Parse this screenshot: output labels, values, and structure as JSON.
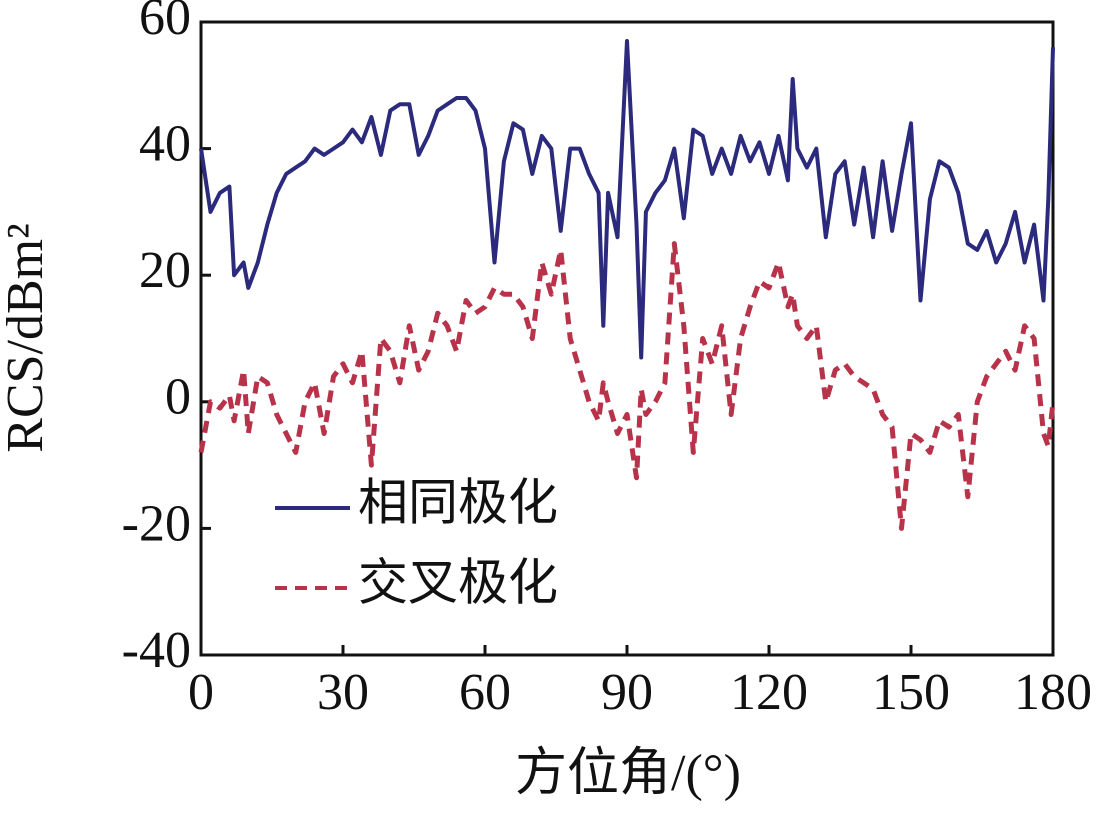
{
  "chart_data": {
    "type": "line",
    "xlabel": "方位角/(°)",
    "ylabel": "RCS/dBm²",
    "x": [
      0,
      2,
      4,
      6,
      7,
      9,
      10,
      12,
      14,
      16,
      18,
      20,
      22,
      24,
      26,
      28,
      30,
      32,
      34,
      36,
      38,
      40,
      42,
      44,
      46,
      48,
      50,
      52,
      54,
      56,
      58,
      60,
      62,
      64,
      66,
      68,
      70,
      72,
      74,
      76,
      78,
      80,
      82,
      84,
      85,
      86,
      88,
      90,
      92,
      93,
      94,
      96,
      98,
      100,
      102,
      104,
      106,
      108,
      110,
      112,
      114,
      116,
      118,
      120,
      122,
      124,
      125,
      126,
      128,
      130,
      132,
      134,
      136,
      138,
      140,
      142,
      144,
      146,
      148,
      150,
      152,
      154,
      156,
      158,
      160,
      162,
      164,
      166,
      168,
      170,
      172,
      174,
      176,
      178,
      179,
      180
    ],
    "series": [
      {
        "name": "相同极化",
        "color": "#2b2a7c",
        "dash": false,
        "values": [
          40,
          30,
          33,
          34,
          20,
          22,
          18,
          22,
          28,
          33,
          36,
          37,
          38,
          40,
          39,
          40,
          41,
          43,
          41,
          45,
          39,
          46,
          47,
          47,
          39,
          42,
          46,
          47,
          48,
          48,
          46,
          40,
          22,
          38,
          44,
          43,
          36,
          42,
          40,
          27,
          40,
          40,
          36,
          33,
          12,
          33,
          26,
          57,
          28,
          7,
          30,
          33,
          35,
          40,
          29,
          43,
          42,
          36,
          40,
          36,
          42,
          38,
          41,
          36,
          42,
          35,
          51,
          40,
          37,
          40,
          26,
          36,
          38,
          28,
          37,
          26,
          38,
          27,
          36,
          44,
          16,
          32,
          38,
          37,
          33,
          25,
          24,
          27,
          22,
          25,
          30,
          22,
          28,
          16,
          32,
          56
        ]
      },
      {
        "name": "交叉极化",
        "color": "#b8334a",
        "dash": true,
        "values": [
          -8,
          0,
          -1,
          1,
          -3,
          5,
          -5,
          4,
          3,
          -2,
          -5,
          -8,
          0,
          3,
          -5,
          4,
          6,
          3,
          8,
          -10,
          10,
          8,
          3,
          12,
          5,
          8,
          14,
          12,
          8,
          16,
          14,
          15,
          18,
          17,
          17,
          15,
          10,
          22,
          17,
          24,
          10,
          5,
          0,
          -3,
          3,
          0,
          -5,
          -2,
          -12,
          2,
          -2,
          0,
          3,
          25,
          12,
          -8,
          10,
          6,
          12,
          -2,
          10,
          15,
          19,
          18,
          22,
          15,
          17,
          12,
          10,
          12,
          0,
          5,
          6,
          4,
          3,
          2,
          -2,
          -4,
          -20,
          -5,
          -6,
          -8,
          -3,
          -4,
          -2,
          -15,
          0,
          4,
          6,
          8,
          5,
          12,
          10,
          -5,
          -7,
          0
        ]
      }
    ],
    "xlim": [
      0,
      180
    ],
    "xticks": [
      0,
      30,
      60,
      90,
      120,
      150,
      180
    ],
    "ylim": [
      -40,
      60
    ],
    "yticks": [
      -40,
      -20,
      0,
      20,
      40,
      60
    ],
    "legend": "lower left",
    "grid": false
  }
}
